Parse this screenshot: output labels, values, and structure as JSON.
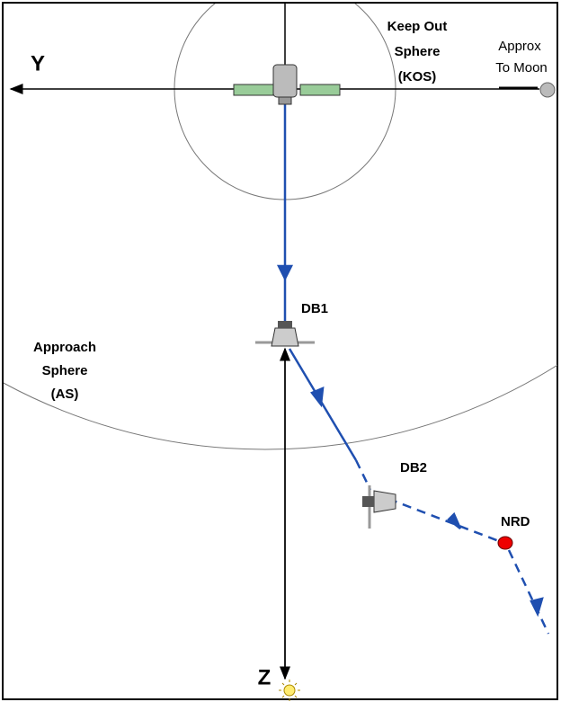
{
  "axes": {
    "y_label": "Y",
    "z_label": "Z"
  },
  "kos": {
    "lines": [
      "Keep Out",
      "Sphere",
      "(KOS)"
    ]
  },
  "moon": {
    "lines": [
      "Approx",
      "To Moon"
    ]
  },
  "as": {
    "lines": [
      "Approach",
      "Sphere",
      "(AS)"
    ]
  },
  "points": {
    "db1": "DB1",
    "db2": "DB2",
    "nrd": "NRD"
  }
}
